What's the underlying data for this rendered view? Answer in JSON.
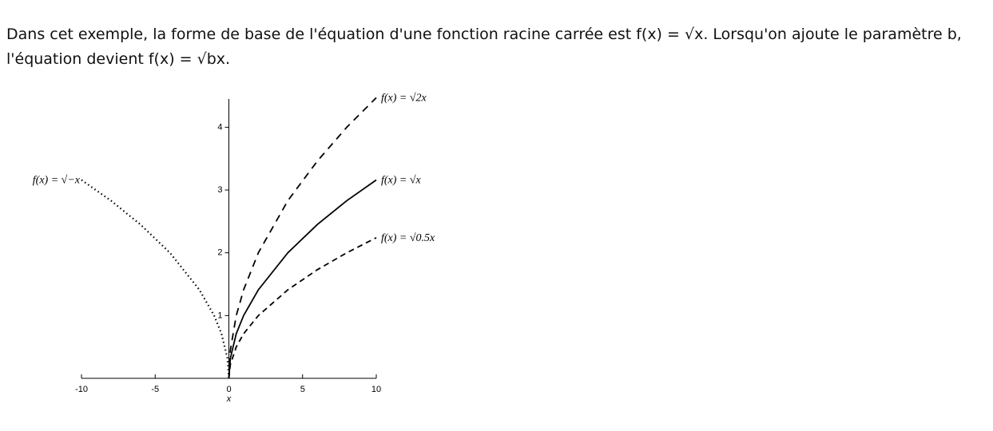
{
  "intro": "Dans cet exemple, la forme de base de l'équation d'une fonction racine carrée est f(x) = √x. Lorsqu'on ajoute le paramètre b, l'équation devient f(x) = √bx.",
  "chart_data": {
    "type": "line",
    "x_label": "x",
    "x": [
      -10,
      -8,
      -6,
      -4,
      -2,
      -1,
      -0.5,
      -0.1,
      0,
      0.1,
      0.5,
      1,
      2,
      4,
      6,
      8,
      10
    ],
    "series": [
      {
        "name": "f(x) = √2x",
        "color": "#000000",
        "style": "long-dash",
        "values": [
          null,
          null,
          null,
          null,
          null,
          null,
          null,
          null,
          0,
          0.45,
          1,
          1.41,
          2,
          2.83,
          3.46,
          4,
          4.47
        ]
      },
      {
        "name": "f(x) = √x",
        "color": "#000000",
        "style": "solid",
        "values": [
          null,
          null,
          null,
          null,
          null,
          null,
          null,
          null,
          0,
          0.32,
          0.71,
          1,
          1.41,
          2,
          2.45,
          2.83,
          3.16
        ]
      },
      {
        "name": "f(x) = √0.5x",
        "color": "#000000",
        "style": "dash",
        "values": [
          null,
          null,
          null,
          null,
          null,
          null,
          null,
          null,
          0,
          0.22,
          0.5,
          0.71,
          1,
          1.41,
          1.73,
          2,
          2.24
        ]
      },
      {
        "name": "f(x) = √−x",
        "color": "#000000",
        "style": "dotted",
        "values": [
          3.16,
          2.83,
          2.45,
          2,
          1.41,
          1,
          0.71,
          0.32,
          0,
          null,
          null,
          null,
          null,
          null,
          null,
          null,
          null
        ]
      }
    ],
    "xlim": [
      -10,
      10
    ],
    "ylim": [
      0,
      4.45
    ],
    "xticks": [
      -10,
      -5,
      0,
      5,
      10
    ],
    "yticks": [
      1,
      2,
      3,
      4
    ]
  }
}
